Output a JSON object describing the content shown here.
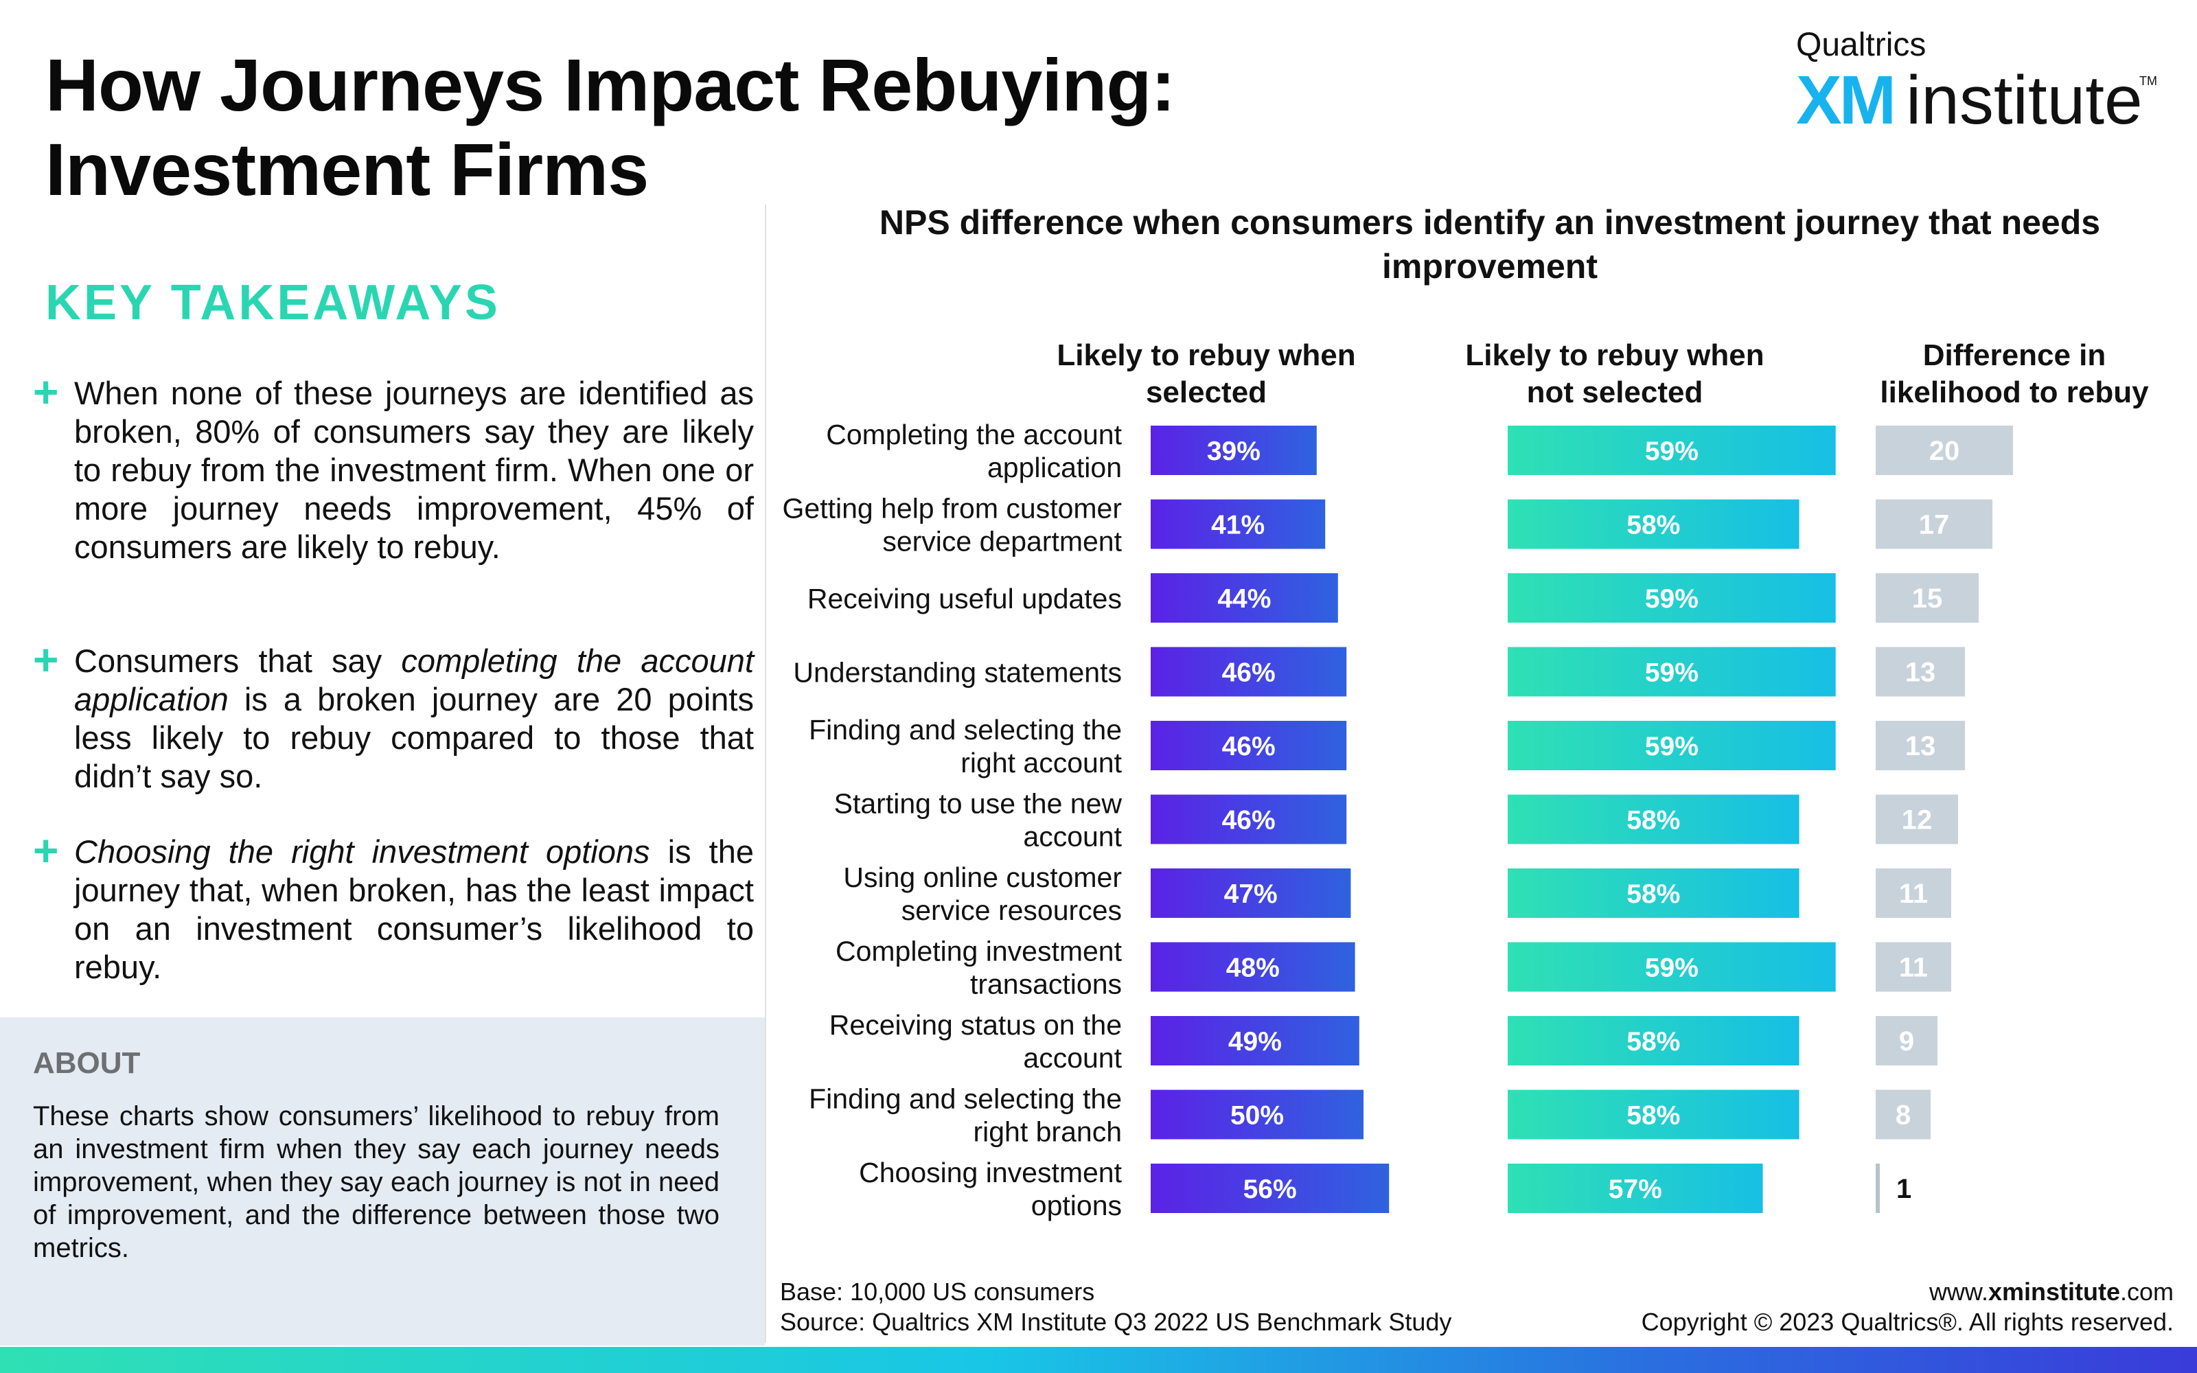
{
  "header": {
    "title_line1": "How Journeys Impact Rebuying:",
    "title_line2": "Investment Firms"
  },
  "logo": {
    "company": "Qualtrics",
    "brand_xm": "XM",
    "brand_word": "institute",
    "trademark": "TM"
  },
  "takeaways": {
    "heading": "KEY TAKEAWAYS",
    "items": [
      "When none of these journeys are identified as broken, 80% of consumers say they are likely to rebuy from the investment firm. When one or more journey needs improvement, 45% of consumers are likely to rebuy.",
      "Consumers that say completing the account application is a broken journey are 20 points less likely to rebuy compared to those that didn’t say so.",
      "Choosing the right investment options is the journey that, when broken, has the least impact on an investment consumer’s likelihood to rebuy."
    ]
  },
  "about": {
    "heading": "ABOUT",
    "text": "These charts show consumers’ likelihood to rebuy from an investment firm when they say each journey needs improvement, when they say each journey is not in need of improvement, and the difference between those two metrics."
  },
  "chart_data": {
    "type": "bar",
    "title": "NPS difference when consumers identify an investment journey that needs improvement",
    "categories": [
      "Completing the account application",
      "Getting help from customer service department",
      "Receiving useful updates",
      "Understanding statements",
      "Finding and selecting the right account",
      "Starting to use the new account",
      "Using online customer service resources",
      "Completing investment transactions",
      "Receiving status on the account",
      "Finding and selecting the right branch",
      "Choosing investment options"
    ],
    "category_lines": [
      [
        "Completing the account",
        "application"
      ],
      [
        "Getting help from customer",
        "service department"
      ],
      [
        "Receiving useful updates"
      ],
      [
        "Understanding statements"
      ],
      [
        "Finding and selecting the",
        "right account"
      ],
      [
        "Starting to use the new",
        "account"
      ],
      [
        "Using online customer",
        "service resources"
      ],
      [
        "Completing investment",
        "transactions"
      ],
      [
        "Receiving status on the",
        "account"
      ],
      [
        "Finding and selecting the",
        "right branch"
      ],
      [
        "Choosing investment",
        "options"
      ]
    ],
    "series": [
      {
        "name": "Likely to rebuy when selected",
        "header_lines": [
          "Likely to rebuy when",
          "selected"
        ],
        "values": [
          39,
          41,
          44,
          46,
          46,
          46,
          47,
          48,
          49,
          50,
          56
        ],
        "labels": [
          "39%",
          "41%",
          "44%",
          "46%",
          "46%",
          "46%",
          "47%",
          "48%",
          "49%",
          "50%",
          "56%"
        ],
        "color_start": "#5b22e6",
        "color_end": "#2f62e0",
        "xlim": [
          0,
          100
        ]
      },
      {
        "name": "Likely to rebuy when not selected",
        "header_lines": [
          "Likely to rebuy when",
          "not selected"
        ],
        "values": [
          59,
          58,
          59,
          59,
          59,
          58,
          58,
          59,
          58,
          58,
          57
        ],
        "labels": [
          "59%",
          "58%",
          "59%",
          "59%",
          "59%",
          "58%",
          "58%",
          "59%",
          "58%",
          "58%",
          "57%"
        ],
        "color_start": "#2fe0b4",
        "color_end": "#17bfe4",
        "xlim": [
          50,
          63
        ]
      },
      {
        "name": "Difference in likelihood to rebuy",
        "header_lines": [
          "Difference in",
          "likelihood to rebuy"
        ],
        "values": [
          20,
          17,
          15,
          13,
          13,
          12,
          11,
          11,
          9,
          8,
          1
        ],
        "labels": [
          "20",
          "17",
          "15",
          "13",
          "13",
          "12",
          "11",
          "11",
          "9",
          "8",
          "1"
        ],
        "color": "#c8d2da",
        "xlim": [
          0,
          24
        ]
      }
    ],
    "grid": false,
    "legend": "none"
  },
  "footer": {
    "base": "Base: 10,000 US consumers",
    "source": "Source: Qualtrics XM Institute Q3 2022 US Benchmark Study",
    "website_prefix": "www.",
    "website_bold": "xminstitute",
    "website_suffix": ".com",
    "copyright": "Copyright © 2023 Qualtrics®. All rights reserved."
  },
  "colors": {
    "accent_green": "#2ad6b2",
    "about_panel": "#e4ebf3",
    "logo_blue": "#17b3ee"
  }
}
